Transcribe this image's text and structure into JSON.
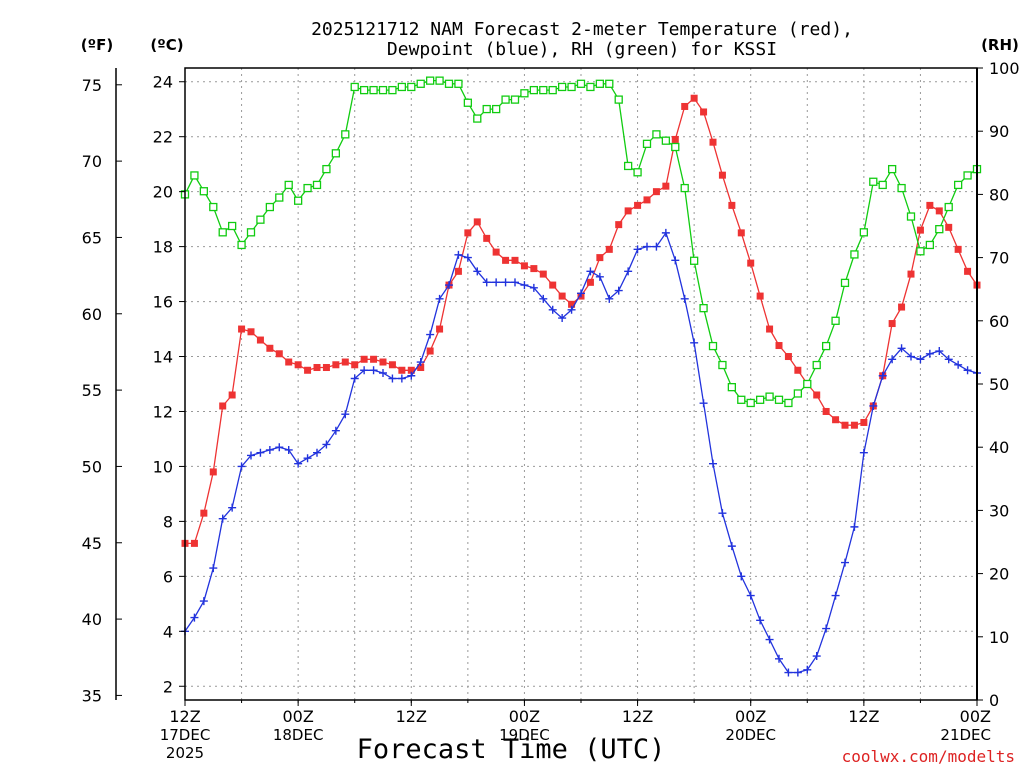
{
  "chart_data": {
    "type": "line",
    "title": "2025121712 NAM Forecast 2-meter Temperature (red),",
    "subtitle": "Dewpoint (blue), RH (green) for KSSI",
    "xlabel": "Forecast Time (UTC)",
    "credit": "coolwx.com/modelts",
    "units": {
      "fahrenheit": "(ºF)",
      "celsius": "(ºC)",
      "rh": "(RH)"
    },
    "colors": {
      "temperature": "#ee3333",
      "dewpoint": "#2233dd",
      "rh": "#11cc11",
      "grid": "#999999"
    },
    "x_range_hours": [
      0,
      84
    ],
    "x_ticks": [
      {
        "hour": 0,
        "lines": [
          "12Z",
          "17DEC",
          "2025"
        ]
      },
      {
        "hour": 12,
        "lines": [
          "00Z",
          "18DEC"
        ]
      },
      {
        "hour": 24,
        "lines": [
          "12Z",
          ""
        ]
      },
      {
        "hour": 36,
        "lines": [
          "00Z",
          "19DEC"
        ]
      },
      {
        "hour": 48,
        "lines": [
          "12Z",
          ""
        ]
      },
      {
        "hour": 60,
        "lines": [
          "00Z",
          "20DEC"
        ]
      },
      {
        "hour": 72,
        "lines": [
          "12Z",
          ""
        ]
      },
      {
        "hour": 84,
        "lines": [
          "00Z",
          "21DEC"
        ]
      }
    ],
    "y_celsius_range": [
      1.5,
      24.5
    ],
    "y_celsius_ticks": [
      2,
      4,
      6,
      8,
      10,
      12,
      14,
      16,
      18,
      20,
      22,
      24
    ],
    "y_fahrenheit_ticks": [
      35,
      40,
      45,
      50,
      55,
      60,
      65,
      70,
      75
    ],
    "y_rh_range": [
      0,
      100
    ],
    "y_rh_ticks": [
      0,
      10,
      20,
      30,
      40,
      50,
      60,
      70,
      80,
      90,
      100
    ],
    "grid": true,
    "series": [
      {
        "name": "Temperature",
        "axis": "celsius",
        "marker": "square-filled",
        "points": [
          [
            0,
            7.2
          ],
          [
            1,
            7.2
          ],
          [
            2,
            8.3
          ],
          [
            3,
            9.8
          ],
          [
            4,
            12.2
          ],
          [
            5,
            12.6
          ],
          [
            6,
            15
          ],
          [
            7,
            14.9
          ],
          [
            8,
            14.6
          ],
          [
            9,
            14.3
          ],
          [
            10,
            14.1
          ],
          [
            11,
            13.8
          ],
          [
            12,
            13.7
          ],
          [
            13,
            13.5
          ],
          [
            14,
            13.6
          ],
          [
            15,
            13.6
          ],
          [
            16,
            13.7
          ],
          [
            17,
            13.8
          ],
          [
            18,
            13.7
          ],
          [
            19,
            13.9
          ],
          [
            20,
            13.9
          ],
          [
            21,
            13.8
          ],
          [
            22,
            13.7
          ],
          [
            23,
            13.5
          ],
          [
            24,
            13.5
          ],
          [
            25,
            13.6
          ],
          [
            26,
            14.2
          ],
          [
            27,
            15
          ],
          [
            28,
            16.6
          ],
          [
            29,
            17.1
          ],
          [
            30,
            18.5
          ],
          [
            31,
            18.9
          ],
          [
            32,
            18.3
          ],
          [
            33,
            17.8
          ],
          [
            34,
            17.5
          ],
          [
            35,
            17.5
          ],
          [
            36,
            17.3
          ],
          [
            37,
            17.2
          ],
          [
            38,
            17
          ],
          [
            39,
            16.6
          ],
          [
            40,
            16.2
          ],
          [
            41,
            15.9
          ],
          [
            42,
            16.2
          ],
          [
            43,
            16.7
          ],
          [
            44,
            17.6
          ],
          [
            45,
            17.9
          ],
          [
            46,
            18.8
          ],
          [
            47,
            19.3
          ],
          [
            48,
            19.5
          ],
          [
            49,
            19.7
          ],
          [
            50,
            20
          ],
          [
            51,
            20.2
          ],
          [
            52,
            21.9
          ],
          [
            53,
            23.1
          ],
          [
            54,
            23.4
          ],
          [
            55,
            22.9
          ],
          [
            56,
            21.8
          ],
          [
            57,
            20.6
          ],
          [
            58,
            19.5
          ],
          [
            59,
            18.5
          ],
          [
            60,
            17.4
          ],
          [
            61,
            16.2
          ],
          [
            62,
            15
          ],
          [
            63,
            14.4
          ],
          [
            64,
            14
          ],
          [
            65,
            13.5
          ],
          [
            66,
            13
          ],
          [
            67,
            12.6
          ],
          [
            68,
            12
          ],
          [
            69,
            11.7
          ],
          [
            70,
            11.5
          ],
          [
            71,
            11.5
          ],
          [
            72,
            11.6
          ],
          [
            73,
            12.2
          ],
          [
            74,
            13.3
          ],
          [
            75,
            15.2
          ],
          [
            76,
            15.8
          ],
          [
            77,
            17
          ],
          [
            78,
            18.6
          ],
          [
            79,
            19.5
          ],
          [
            80,
            19.3
          ],
          [
            81,
            18.7
          ],
          [
            82,
            17.9
          ],
          [
            83,
            17.1
          ],
          [
            84,
            16.6
          ]
        ]
      },
      {
        "name": "Dewpoint",
        "axis": "celsius",
        "marker": "plus",
        "points": [
          [
            0,
            4
          ],
          [
            1,
            4.5
          ],
          [
            2,
            5.1
          ],
          [
            3,
            6.3
          ],
          [
            4,
            8.1
          ],
          [
            5,
            8.5
          ],
          [
            6,
            10
          ],
          [
            7,
            10.4
          ],
          [
            8,
            10.5
          ],
          [
            9,
            10.6
          ],
          [
            10,
            10.7
          ],
          [
            11,
            10.6
          ],
          [
            12,
            10.1
          ],
          [
            13,
            10.3
          ],
          [
            14,
            10.5
          ],
          [
            15,
            10.8
          ],
          [
            16,
            11.3
          ],
          [
            17,
            11.9
          ],
          [
            18,
            13.2
          ],
          [
            19,
            13.5
          ],
          [
            20,
            13.5
          ],
          [
            21,
            13.4
          ],
          [
            22,
            13.2
          ],
          [
            23,
            13.2
          ],
          [
            24,
            13.3
          ],
          [
            25,
            13.8
          ],
          [
            26,
            14.8
          ],
          [
            27,
            16.1
          ],
          [
            28,
            16.6
          ],
          [
            29,
            17.7
          ],
          [
            30,
            17.6
          ],
          [
            31,
            17.1
          ],
          [
            32,
            16.7
          ],
          [
            33,
            16.7
          ],
          [
            34,
            16.7
          ],
          [
            35,
            16.7
          ],
          [
            36,
            16.6
          ],
          [
            37,
            16.5
          ],
          [
            38,
            16.1
          ],
          [
            39,
            15.7
          ],
          [
            40,
            15.4
          ],
          [
            41,
            15.7
          ],
          [
            42,
            16.3
          ],
          [
            43,
            17.1
          ],
          [
            44,
            16.9
          ],
          [
            45,
            16.1
          ],
          [
            46,
            16.4
          ],
          [
            47,
            17.1
          ],
          [
            48,
            17.9
          ],
          [
            49,
            18
          ],
          [
            50,
            18
          ],
          [
            51,
            18.5
          ],
          [
            52,
            17.5
          ],
          [
            53,
            16.1
          ],
          [
            54,
            14.5
          ],
          [
            55,
            12.3
          ],
          [
            56,
            10.1
          ],
          [
            57,
            8.3
          ],
          [
            58,
            7.1
          ],
          [
            59,
            6
          ],
          [
            60,
            5.3
          ],
          [
            61,
            4.4
          ],
          [
            62,
            3.7
          ],
          [
            63,
            3
          ],
          [
            64,
            2.5
          ],
          [
            65,
            2.5
          ],
          [
            66,
            2.6
          ],
          [
            67,
            3.1
          ],
          [
            68,
            4.1
          ],
          [
            69,
            5.3
          ],
          [
            70,
            6.5
          ],
          [
            71,
            7.8
          ],
          [
            72,
            10.5
          ],
          [
            73,
            12.2
          ],
          [
            74,
            13.3
          ],
          [
            75,
            13.9
          ],
          [
            76,
            14.3
          ],
          [
            77,
            14
          ],
          [
            78,
            13.9
          ],
          [
            79,
            14.1
          ],
          [
            80,
            14.2
          ],
          [
            81,
            13.9
          ],
          [
            82,
            13.7
          ],
          [
            83,
            13.5
          ],
          [
            84,
            13.4
          ]
        ]
      },
      {
        "name": "RH",
        "axis": "rh",
        "marker": "square-open",
        "points": [
          [
            0,
            80
          ],
          [
            1,
            83
          ],
          [
            2,
            80.5
          ],
          [
            3,
            78
          ],
          [
            4,
            74
          ],
          [
            5,
            75
          ],
          [
            6,
            72
          ],
          [
            7,
            74
          ],
          [
            8,
            76
          ],
          [
            9,
            78
          ],
          [
            10,
            79.5
          ],
          [
            11,
            81.5
          ],
          [
            12,
            79
          ],
          [
            13,
            81
          ],
          [
            14,
            81.5
          ],
          [
            15,
            84
          ],
          [
            16,
            86.5
          ],
          [
            17,
            89.5
          ],
          [
            18,
            97
          ],
          [
            19,
            96.5
          ],
          [
            20,
            96.5
          ],
          [
            21,
            96.5
          ],
          [
            22,
            96.5
          ],
          [
            23,
            97
          ],
          [
            24,
            97
          ],
          [
            25,
            97.5
          ],
          [
            26,
            98
          ],
          [
            27,
            98
          ],
          [
            28,
            97.5
          ],
          [
            29,
            97.5
          ],
          [
            30,
            94.5
          ],
          [
            31,
            92
          ],
          [
            32,
            93.5
          ],
          [
            33,
            93.5
          ],
          [
            34,
            95
          ],
          [
            35,
            95
          ],
          [
            36,
            96
          ],
          [
            37,
            96.5
          ],
          [
            38,
            96.5
          ],
          [
            39,
            96.5
          ],
          [
            40,
            97
          ],
          [
            41,
            97
          ],
          [
            42,
            97.5
          ],
          [
            43,
            97
          ],
          [
            44,
            97.5
          ],
          [
            45,
            97.5
          ],
          [
            46,
            95
          ],
          [
            47,
            84.5
          ],
          [
            48,
            83.5
          ],
          [
            49,
            88
          ],
          [
            50,
            89.5
          ],
          [
            51,
            88.5
          ],
          [
            52,
            87.5
          ],
          [
            53,
            81
          ],
          [
            54,
            69.5
          ],
          [
            55,
            62
          ],
          [
            56,
            56
          ],
          [
            57,
            53
          ],
          [
            58,
            49.5
          ],
          [
            59,
            47.5
          ],
          [
            60,
            47
          ],
          [
            61,
            47.5
          ],
          [
            62,
            48
          ],
          [
            63,
            47.5
          ],
          [
            64,
            47
          ],
          [
            65,
            48.5
          ],
          [
            66,
            50
          ],
          [
            67,
            53
          ],
          [
            68,
            56
          ],
          [
            69,
            60
          ],
          [
            70,
            66
          ],
          [
            71,
            70.5
          ],
          [
            72,
            74
          ],
          [
            73,
            82
          ],
          [
            74,
            81.5
          ],
          [
            75,
            84
          ],
          [
            76,
            81
          ],
          [
            77,
            76.5
          ],
          [
            78,
            71
          ],
          [
            79,
            72
          ],
          [
            80,
            74.5
          ],
          [
            81,
            78
          ],
          [
            82,
            81.5
          ],
          [
            83,
            83
          ],
          [
            84,
            84
          ]
        ]
      }
    ]
  }
}
